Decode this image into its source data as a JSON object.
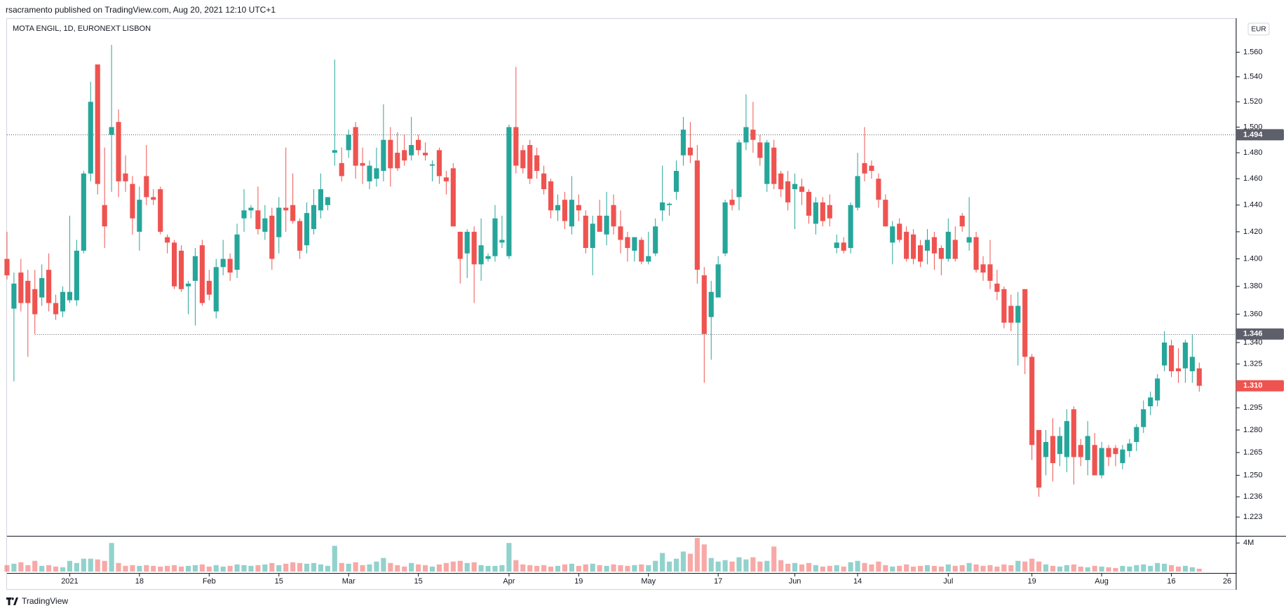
{
  "header": {
    "text": "rsacramento published on TradingView.com, Aug 20, 2021 12:10 UTC+1"
  },
  "footer": {
    "brand": "TradingView"
  },
  "chart_data": {
    "type": "candlestick",
    "title": "MOTA ENGIL, 1D, EURONEXT LISBON",
    "currency": "EUR",
    "log_scale": true,
    "up_color": "#26a69a",
    "down_color": "#ef5350",
    "open": [
      1.4,
      1.364,
      1.39,
      1.384,
      1.378,
      1.372,
      1.392,
      1.368,
      1.362,
      1.37,
      1.37,
      1.406,
      1.464,
      1.55,
      1.44,
      1.494,
      1.504,
      1.464,
      1.456,
      1.42,
      1.462,
      1.446,
      1.452,
      1.416,
      1.412,
      1.406,
      1.38,
      1.384,
      1.41,
      1.384,
      1.362,
      1.394,
      1.4,
      1.392,
      1.43,
      1.436,
      1.436,
      1.42,
      1.432,
      1.416,
      1.438,
      1.44,
      1.428,
      1.41,
      1.422,
      1.436,
      1.44,
      1.48,
      1.472,
      1.482,
      1.5,
      1.472,
      1.458,
      1.46,
      1.466,
      1.49,
      1.48,
      1.482,
      1.478,
      1.49,
      1.48,
      1.47,
      1.482,
      1.461,
      1.468,
      1.42,
      1.404,
      1.42,
      1.396,
      1.4,
      1.402,
      1.412,
      1.402,
      1.5,
      1.482,
      1.486,
      1.478,
      1.464,
      1.458,
      1.436,
      1.444,
      1.424,
      1.44,
      1.432,
      1.408,
      1.432,
      1.418,
      1.44,
      1.424,
      1.416,
      1.406,
      1.414,
      1.398,
      1.404,
      1.436,
      1.44,
      1.45,
      1.478,
      1.484,
      1.474,
      1.388,
      1.358,
      1.372,
      1.404,
      1.444,
      1.446,
      1.488,
      1.498,
      1.488,
      1.456,
      1.484,
      1.464,
      1.458,
      1.452,
      1.454,
      1.45,
      1.426,
      1.442,
      1.44,
      1.408,
      1.412,
      1.408,
      1.438,
      1.472,
      1.47,
      1.46,
      1.444,
      1.412,
      1.426,
      1.42,
      1.418,
      1.41,
      1.406,
      1.416,
      1.408,
      1.4,
      1.414,
      1.432,
      1.412,
      1.416,
      1.396,
      1.396,
      1.382,
      1.378,
      1.366,
      1.354,
      1.378,
      1.33,
      1.28,
      1.262,
      1.276,
      1.264,
      1.262,
      1.294,
      1.27,
      1.26,
      1.27,
      1.25,
      1.268,
      1.268,
      1.258,
      1.266,
      1.272,
      1.282,
      1.296,
      1.3,
      1.324,
      1.338,
      1.322,
      1.322,
      1.32,
      1.322
    ],
    "high": [
      1.42,
      1.39,
      1.4,
      1.392,
      1.392,
      1.396,
      1.404,
      1.374,
      1.38,
      1.432,
      1.414,
      1.466,
      1.536,
      1.55,
      1.484,
      1.566,
      1.514,
      1.478,
      1.462,
      1.454,
      1.486,
      1.452,
      1.454,
      1.418,
      1.414,
      1.41,
      1.384,
      1.408,
      1.414,
      1.392,
      1.4,
      1.414,
      1.404,
      1.426,
      1.452,
      1.44,
      1.454,
      1.44,
      1.438,
      1.446,
      1.484,
      1.464,
      1.43,
      1.442,
      1.452,
      1.464,
      1.446,
      1.554,
      1.484,
      1.498,
      1.504,
      1.484,
      1.474,
      1.484,
      1.518,
      1.5,
      1.496,
      1.494,
      1.508,
      1.494,
      1.488,
      1.474,
      1.484,
      1.466,
      1.472,
      1.42,
      1.422,
      1.424,
      1.43,
      1.404,
      1.44,
      1.432,
      1.502,
      1.548,
      1.486,
      1.49,
      1.484,
      1.47,
      1.46,
      1.448,
      1.45,
      1.462,
      1.448,
      1.436,
      1.432,
      1.444,
      1.45,
      1.448,
      1.436,
      1.42,
      1.416,
      1.416,
      1.42,
      1.43,
      1.47,
      1.442,
      1.474,
      1.508,
      1.504,
      1.486,
      1.394,
      1.384,
      1.402,
      1.444,
      1.452,
      1.49,
      1.526,
      1.52,
      1.494,
      1.49,
      1.49,
      1.466,
      1.466,
      1.464,
      1.46,
      1.452,
      1.446,
      1.446,
      1.448,
      1.418,
      1.416,
      1.442,
      1.48,
      1.5,
      1.474,
      1.464,
      1.448,
      1.428,
      1.43,
      1.424,
      1.422,
      1.414,
      1.422,
      1.42,
      1.41,
      1.43,
      1.424,
      1.434,
      1.446,
      1.42,
      1.402,
      1.414,
      1.392,
      1.38,
      1.374,
      1.376,
      1.378,
      1.332,
      1.28,
      1.28,
      1.288,
      1.282,
      1.294,
      1.296,
      1.274,
      1.286,
      1.278,
      1.272,
      1.27,
      1.27,
      1.27,
      1.274,
      1.284,
      1.3,
      1.306,
      1.318,
      1.348,
      1.342,
      1.336,
      1.342,
      1.346,
      1.326
    ],
    "low": [
      1.385,
      1.313,
      1.362,
      1.33,
      1.346,
      1.366,
      1.362,
      1.356,
      1.358,
      1.368,
      1.366,
      1.404,
      1.458,
      1.448,
      1.408,
      1.45,
      1.446,
      1.45,
      1.418,
      1.406,
      1.44,
      1.44,
      1.418,
      1.404,
      1.378,
      1.376,
      1.36,
      1.352,
      1.366,
      1.37,
      1.357,
      1.388,
      1.384,
      1.386,
      1.42,
      1.43,
      1.418,
      1.414,
      1.392,
      1.404,
      1.42,
      1.426,
      1.4,
      1.404,
      1.418,
      1.43,
      1.436,
      1.47,
      1.458,
      1.476,
      1.46,
      1.456,
      1.452,
      1.454,
      1.458,
      1.454,
      1.466,
      1.47,
      1.474,
      1.478,
      1.474,
      1.458,
      1.456,
      1.448,
      1.424,
      1.382,
      1.386,
      1.368,
      1.384,
      1.398,
      1.398,
      1.408,
      1.4,
      1.464,
      1.464,
      1.456,
      1.46,
      1.448,
      1.43,
      1.428,
      1.422,
      1.418,
      1.428,
      1.404,
      1.388,
      1.42,
      1.41,
      1.418,
      1.404,
      1.398,
      1.398,
      1.396,
      1.396,
      1.402,
      1.428,
      1.432,
      1.444,
      1.47,
      1.472,
      1.382,
      1.312,
      1.328,
      1.372,
      1.402,
      1.436,
      1.436,
      1.482,
      1.48,
      1.47,
      1.45,
      1.452,
      1.446,
      1.436,
      1.422,
      1.44,
      1.426,
      1.418,
      1.424,
      1.424,
      1.404,
      1.404,
      1.404,
      1.436,
      1.458,
      1.46,
      1.438,
      1.424,
      1.396,
      1.412,
      1.398,
      1.396,
      1.394,
      1.396,
      1.392,
      1.388,
      1.398,
      1.398,
      1.42,
      1.406,
      1.39,
      1.384,
      1.378,
      1.37,
      1.35,
      1.348,
      1.324,
      1.318,
      1.26,
      1.236,
      1.25,
      1.246,
      1.256,
      1.252,
      1.244,
      1.256,
      1.25,
      1.25,
      1.248,
      1.256,
      1.256,
      1.254,
      1.262,
      1.266,
      1.278,
      1.29,
      1.296,
      1.32,
      1.316,
      1.312,
      1.312,
      1.312,
      1.306
    ],
    "close": [
      1.388,
      1.382,
      1.368,
      1.368,
      1.36,
      1.386,
      1.368,
      1.36,
      1.376,
      1.376,
      1.406,
      1.464,
      1.52,
      1.456,
      1.424,
      1.5,
      1.458,
      1.458,
      1.43,
      1.444,
      1.446,
      1.444,
      1.42,
      1.412,
      1.38,
      1.378,
      1.382,
      1.402,
      1.368,
      1.374,
      1.394,
      1.4,
      1.39,
      1.418,
      1.436,
      1.438,
      1.422,
      1.43,
      1.4,
      1.438,
      1.436,
      1.428,
      1.406,
      1.434,
      1.44,
      1.452,
      1.446,
      1.482,
      1.462,
      1.494,
      1.47,
      1.47,
      1.47,
      1.468,
      1.49,
      1.468,
      1.468,
      1.474,
      1.486,
      1.482,
      1.478,
      1.471,
      1.462,
      1.458,
      1.424,
      1.4,
      1.42,
      1.396,
      1.41,
      1.402,
      1.43,
      1.414,
      1.5,
      1.47,
      1.468,
      1.46,
      1.466,
      1.452,
      1.436,
      1.44,
      1.428,
      1.444,
      1.436,
      1.408,
      1.426,
      1.42,
      1.432,
      1.424,
      1.414,
      1.408,
      1.416,
      1.398,
      1.402,
      1.424,
      1.442,
      1.441,
      1.466,
      1.498,
      1.478,
      1.392,
      1.346,
      1.376,
      1.396,
      1.442,
      1.44,
      1.488,
      1.5,
      1.49,
      1.476,
      1.488,
      1.456,
      1.452,
      1.442,
      1.456,
      1.45,
      1.432,
      1.442,
      1.428,
      1.43,
      1.412,
      1.406,
      1.44,
      1.462,
      1.464,
      1.466,
      1.444,
      1.424,
      1.424,
      1.414,
      1.4,
      1.4,
      1.398,
      1.414,
      1.404,
      1.4,
      1.42,
      1.4,
      1.424,
      1.416,
      1.392,
      1.39,
      1.384,
      1.376,
      1.354,
      1.354,
      1.366,
      1.33,
      1.27,
      1.242,
      1.272,
      1.258,
      1.276,
      1.286,
      1.262,
      1.262,
      1.276,
      1.25,
      1.268,
      1.262,
      1.264,
      1.267,
      1.271,
      1.282,
      1.294,
      1.302,
      1.315,
      1.34,
      1.32,
      1.32,
      1.34,
      1.33,
      1.31
    ],
    "volume": [
      900000,
      1100000,
      1300000,
      900000,
      1500000,
      800000,
      900000,
      700000,
      600000,
      1500000,
      1200000,
      1800000,
      1800000,
      1700000,
      1500000,
      4000000,
      1200000,
      800000,
      900000,
      800000,
      900000,
      800000,
      700000,
      800000,
      900000,
      700000,
      800000,
      900000,
      1000000,
      700000,
      900000,
      700000,
      800000,
      1000000,
      900000,
      800000,
      900000,
      1000000,
      1200000,
      900000,
      1100000,
      1300000,
      1200000,
      1100000,
      1200000,
      1000000,
      800000,
      3600000,
      1200000,
      1100000,
      1300000,
      900000,
      1000000,
      1400000,
      1900000,
      1200000,
      900000,
      700000,
      1200000,
      1000000,
      900000,
      700000,
      1000000,
      1200000,
      1400000,
      1500000,
      1200000,
      1300000,
      900000,
      800000,
      800000,
      900000,
      4000000,
      1600000,
      1000000,
      900000,
      800000,
      900000,
      700000,
      800000,
      1000000,
      1100000,
      800000,
      1000000,
      1100000,
      900000,
      800000,
      1000000,
      900000,
      800000,
      900000,
      1000000,
      900000,
      1500000,
      2600000,
      1400000,
      1800000,
      2800000,
      2500000,
      4700000,
      3800000,
      1900000,
      1400000,
      1600000,
      1400000,
      2000000,
      1700000,
      2000000,
      1400000,
      1500000,
      3500000,
      1600000,
      1100000,
      1200000,
      1000000,
      1200000,
      900000,
      700000,
      800000,
      900000,
      700000,
      1300000,
      1500000,
      1200000,
      1000000,
      1400000,
      900000,
      700000,
      800000,
      1000000,
      700000,
      800000,
      900000,
      800000,
      700000,
      1000000,
      800000,
      900000,
      1200000,
      1000000,
      800000,
      900000,
      700000,
      1000000,
      900000,
      1500000,
      1400000,
      1800000,
      1400000,
      1000000,
      800000,
      700000,
      900000,
      1000000,
      700000,
      600000,
      800000,
      700000,
      600000,
      500000,
      800000,
      700000,
      900000,
      1000000,
      800000,
      1200000,
      1100000,
      900000,
      700000,
      800000,
      600000,
      400000
    ],
    "last_price_label": "1.310",
    "price_lines": [
      1.494,
      1.346
    ],
    "xlim": [
      -1,
      176.3
    ],
    "xticks": [
      {
        "value": 9,
        "label": "2021"
      },
      {
        "value": 19,
        "label": "18"
      },
      {
        "value": 29,
        "label": "Feb"
      },
      {
        "value": 39,
        "label": "15"
      },
      {
        "value": 49,
        "label": "Mar"
      },
      {
        "value": 59,
        "label": "15"
      },
      {
        "value": 72,
        "label": "Apr"
      },
      {
        "value": 82,
        "label": "19"
      },
      {
        "value": 92,
        "label": "May"
      },
      {
        "value": 102,
        "label": "17"
      },
      {
        "value": 113,
        "label": "Jun"
      },
      {
        "value": 122,
        "label": "14"
      },
      {
        "value": 135,
        "label": "Jul"
      },
      {
        "value": 147,
        "label": "19"
      },
      {
        "value": 157,
        "label": "Aug"
      },
      {
        "value": 167,
        "label": "16"
      },
      {
        "value": 175,
        "label": "26"
      }
    ],
    "ylim": [
      1.211,
      1.588
    ],
    "yticks": [
      1.223,
      1.236,
      {
        "value": 1.25,
        "label": "1.250"
      },
      1.265,
      {
        "value": 1.28,
        "label": "1.280"
      },
      1.295,
      {
        "value": 1.31,
        "label": "1.310"
      },
      1.325,
      {
        "value": 1.34,
        "label": "1.340"
      },
      {
        "value": 1.36,
        "label": "1.360"
      },
      {
        "value": 1.38,
        "label": "1.380"
      },
      {
        "value": 1.4,
        "label": "1.400"
      },
      {
        "value": 1.42,
        "label": "1.420"
      },
      {
        "value": 1.44,
        "label": "1.440"
      },
      {
        "value": 1.46,
        "label": "1.460"
      },
      {
        "value": 1.48,
        "label": "1.480"
      },
      {
        "value": 1.5,
        "label": "1.500"
      },
      {
        "value": 1.52,
        "label": "1.520"
      },
      {
        "value": 1.54,
        "label": "1.540"
      },
      {
        "value": 1.56,
        "label": "1.560"
      }
    ],
    "volume_ylim": [
      0,
      4900000
    ],
    "volume_ticks": [
      {
        "value": 4000000,
        "label": "4M"
      }
    ]
  }
}
